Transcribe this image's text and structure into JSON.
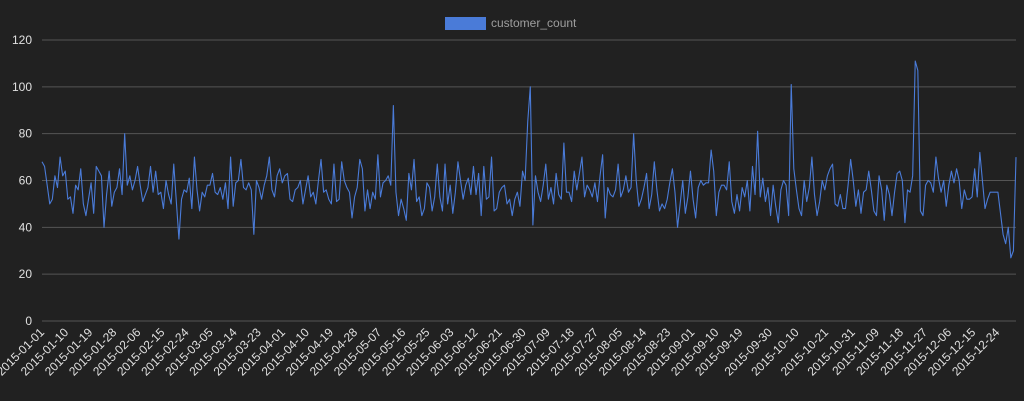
{
  "chart_data": {
    "type": "line",
    "title": "",
    "xlabel": "",
    "ylabel": "",
    "ylim": [
      0,
      120
    ],
    "yticks": [
      0,
      20,
      40,
      60,
      80,
      100,
      120
    ],
    "grid": true,
    "legend_position": "top-center",
    "colors": {
      "background": "#212121",
      "series": "#4a7bd8",
      "grid": "#555555",
      "text": "#e0e0e0"
    },
    "x_start": "2015-01-01",
    "x_end": "2015-12-31",
    "x_tick_labels": [
      "2015-01-01",
      "2015-01-10",
      "2015-01-19",
      "2015-01-28",
      "2015-02-06",
      "2015-02-15",
      "2015-02-24",
      "2015-03-05",
      "2015-03-14",
      "2015-03-23",
      "2015-04-01",
      "2015-04-10",
      "2015-04-19",
      "2015-04-28",
      "2015-05-07",
      "2015-05-16",
      "2015-05-25",
      "2015-06-03",
      "2015-06-12",
      "2015-06-21",
      "2015-06-30",
      "2015-07-09",
      "2015-07-18",
      "2015-07-27",
      "2015-08-05",
      "2015-08-14",
      "2015-08-23",
      "2015-09-01",
      "2015-09-10",
      "2015-09-19",
      "2015-09-30",
      "2015-10-10",
      "2015-10-21",
      "2015-10-31",
      "2015-11-09",
      "2015-11-18",
      "2015-11-27",
      "2015-12-06",
      "2015-12-15",
      "2015-12-24"
    ],
    "series": [
      {
        "name": "customer_count",
        "values": [
          68,
          66,
          58,
          50,
          52,
          62,
          57,
          70,
          62,
          64,
          52,
          53,
          46,
          58,
          56,
          65,
          50,
          45,
          52,
          59,
          46,
          66,
          64,
          62,
          40,
          54,
          64,
          49,
          55,
          57,
          65,
          54,
          80,
          58,
          62,
          56,
          60,
          66,
          58,
          51,
          54,
          57,
          66,
          55,
          64,
          54,
          55,
          48,
          60,
          54,
          50,
          67,
          51,
          35,
          52,
          56,
          55,
          61,
          48,
          70,
          56,
          47,
          55,
          53,
          58,
          58,
          63,
          55,
          54,
          57,
          52,
          59,
          48,
          70,
          49,
          59,
          60,
          69,
          57,
          56,
          59,
          56,
          37,
          60,
          57,
          52,
          58,
          62,
          70,
          56,
          53,
          62,
          65,
          59,
          62,
          63,
          52,
          51,
          56,
          57,
          60,
          50,
          56,
          62,
          53,
          55,
          50,
          60,
          69,
          55,
          56,
          52,
          50,
          67,
          51,
          52,
          68,
          60,
          57,
          55,
          44,
          53,
          57,
          69,
          65,
          47,
          56,
          48,
          55,
          52,
          71,
          53,
          59,
          60,
          62,
          58,
          92,
          55,
          45,
          52,
          48,
          43,
          63,
          56,
          69,
          51,
          53,
          45,
          48,
          59,
          57,
          47,
          53,
          67,
          53,
          47,
          67,
          50,
          58,
          46,
          55,
          68,
          60,
          52,
          58,
          61,
          54,
          66,
          54,
          63,
          45,
          66,
          52,
          53,
          70,
          47,
          48,
          55,
          57,
          58,
          50,
          52,
          45,
          52,
          55,
          49,
          64,
          60,
          85,
          100,
          41,
          62,
          55,
          51,
          58,
          67,
          52,
          57,
          50,
          63,
          54,
          52,
          76,
          55,
          55,
          51,
          64,
          56,
          63,
          70,
          53,
          58,
          56,
          53,
          59,
          51,
          62,
          71,
          44,
          57,
          54,
          53,
          56,
          67,
          53,
          56,
          62,
          55,
          57,
          80,
          60,
          49,
          52,
          57,
          63,
          48,
          54,
          68,
          56,
          47,
          50,
          48,
          52,
          59,
          65,
          55,
          40,
          50,
          60,
          46,
          53,
          64,
          52,
          44,
          57,
          60,
          58,
          59,
          59,
          73,
          64,
          45,
          55,
          58,
          58,
          56,
          68,
          51,
          46,
          54,
          47,
          57,
          53,
          60,
          47,
          66,
          54,
          81,
          53,
          61,
          51,
          57,
          45,
          58,
          49,
          42,
          56,
          60,
          58,
          45,
          101,
          65,
          56,
          48,
          45,
          60,
          51,
          57,
          70,
          54,
          45,
          51,
          60,
          56,
          62,
          65,
          67,
          50,
          49,
          54,
          48,
          48,
          58,
          69,
          60,
          49,
          56,
          46,
          55,
          56,
          64,
          56,
          47,
          45,
          62,
          56,
          43,
          58,
          54,
          45,
          55,
          63,
          64,
          60,
          42,
          56,
          55,
          62,
          111,
          107,
          47,
          45,
          58,
          60,
          59,
          55,
          70,
          61,
          55,
          60,
          49,
          58,
          64,
          59,
          65,
          60,
          48,
          56,
          52,
          52,
          53,
          65,
          53,
          72,
          60,
          48,
          52,
          55,
          55,
          55,
          55,
          46,
          37,
          33,
          40,
          27,
          30,
          70
        ]
      }
    ]
  }
}
